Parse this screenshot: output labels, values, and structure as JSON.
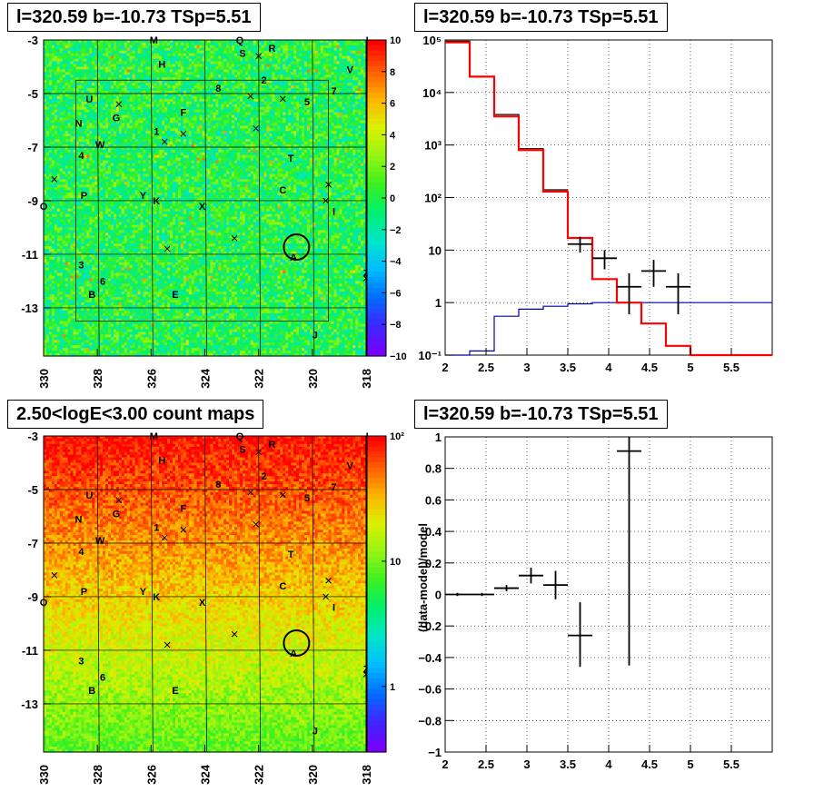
{
  "chart_data": [
    {
      "type": "heatmap",
      "title": "l=320.59 b=-10.73 TSp=5.51",
      "xlim": [
        330,
        318
      ],
      "ylim": [
        -14.8,
        -3
      ],
      "xticks": [
        "330",
        "328",
        "326",
        "324",
        "322",
        "320",
        "318"
      ],
      "yticks": [
        "-3",
        "-5",
        "-7",
        "-9",
        "-11",
        "-13"
      ],
      "colorbar": {
        "range": [
          -10,
          10
        ],
        "ticks": [
          "10",
          "8",
          "6",
          "4",
          "2",
          "0",
          "−2",
          "−4",
          "−6",
          "−8",
          "−10"
        ]
      },
      "circle": {
        "l": 320.59,
        "b": -10.73
      },
      "sources": [
        {
          "label": "M",
          "l": 325.9,
          "b": -3.0
        },
        {
          "label": "L",
          "l": 317.9,
          "b": -3.0
        },
        {
          "label": "Q",
          "l": 322.7,
          "b": -3.0
        },
        {
          "label": "S",
          "l": 322.6,
          "b": -3.5
        },
        {
          "label": "R",
          "l": 321.5,
          "b": -3.3
        },
        {
          "label": "H",
          "l": 325.6,
          "b": -3.9
        },
        {
          "label": "V",
          "l": 318.6,
          "b": -4.1
        },
        {
          "label": "2",
          "l": 321.8,
          "b": -4.5
        },
        {
          "label": "8",
          "l": 323.5,
          "b": -4.8
        },
        {
          "label": "7",
          "l": 319.2,
          "b": -4.9
        },
        {
          "label": "U",
          "l": 328.3,
          "b": -5.2
        },
        {
          "label": "5",
          "l": 320.2,
          "b": -5.3
        },
        {
          "label": "F",
          "l": 324.8,
          "b": -5.7
        },
        {
          "label": "G",
          "l": 327.3,
          "b": -5.9
        },
        {
          "label": "N",
          "l": 328.7,
          "b": -6.1
        },
        {
          "label": "1",
          "l": 325.8,
          "b": -6.4
        },
        {
          "label": "W",
          "l": 327.9,
          "b": -6.9
        },
        {
          "label": "4",
          "l": 328.6,
          "b": -7.3
        },
        {
          "label": "T",
          "l": 320.8,
          "b": -7.4
        },
        {
          "label": "C",
          "l": 321.1,
          "b": -8.6
        },
        {
          "label": "P",
          "l": 328.5,
          "b": -8.8
        },
        {
          "label": "Y",
          "l": 326.3,
          "b": -8.8
        },
        {
          "label": "K",
          "l": 325.8,
          "b": -9.0
        },
        {
          "label": "X",
          "l": 324.1,
          "b": -9.2
        },
        {
          "label": "I",
          "l": 319.2,
          "b": -9.4
        },
        {
          "label": "O",
          "l": 330.0,
          "b": -9.2
        },
        {
          "label": "A",
          "l": 320.7,
          "b": -11.1
        },
        {
          "label": "3",
          "l": 328.6,
          "b": -11.4
        },
        {
          "label": "6",
          "l": 327.8,
          "b": -12.0
        },
        {
          "label": "Z",
          "l": 318.0,
          "b": -11.7
        },
        {
          "label": "B",
          "l": 328.2,
          "b": -12.5
        },
        {
          "label": "E",
          "l": 325.1,
          "b": -12.5
        },
        {
          "label": "J",
          "l": 319.9,
          "b": -14.0
        }
      ]
    },
    {
      "type": "line",
      "title": "l=320.59 b=-10.73 TSp=5.51",
      "xlim": [
        2,
        6
      ],
      "ylim": [
        0.1,
        100000
      ],
      "log_y": true,
      "grid": true,
      "xticks": [
        "2",
        "2.5",
        "3",
        "3.5",
        "4",
        "4.5",
        "5",
        "5.5"
      ],
      "yticks": [
        "10⁵",
        "10⁴",
        "10³",
        "10²",
        "10",
        "1",
        "10⁻¹"
      ],
      "series": [
        {
          "color": "#ff0000",
          "edges": [
            2.0,
            2.3,
            2.6,
            2.9,
            3.2,
            3.5,
            3.8,
            4.1,
            4.4,
            4.7,
            5.0,
            5.3,
            5.6,
            6.0
          ],
          "values": [
            90000,
            20000,
            3500,
            800,
            130,
            17,
            2.8,
            1.0,
            0.4,
            0.15,
            0.1,
            0.1,
            0.1
          ]
        },
        {
          "color": "#0000aa",
          "edges": [
            2.0,
            2.3,
            2.6,
            2.9,
            3.2,
            3.5,
            3.8,
            4.1,
            6.0
          ],
          "values": [
            0.1,
            0.12,
            0.55,
            0.75,
            0.85,
            0.95,
            1.0,
            1.0
          ]
        },
        {
          "color": "#000000",
          "edges": [
            2.0,
            2.3,
            2.6,
            2.9,
            3.2,
            3.5
          ],
          "values": [
            95000,
            20000,
            3800,
            850,
            140
          ]
        }
      ],
      "points": [
        {
          "x": 3.65,
          "y": 13,
          "xerr": 0.15,
          "ylo": 9,
          "yhi": 18
        },
        {
          "x": 3.95,
          "y": 7,
          "xerr": 0.15,
          "ylo": 4.3,
          "yhi": 10
        },
        {
          "x": 4.25,
          "y": 2,
          "xerr": 0.15,
          "ylo": 0.6,
          "yhi": 3.6
        },
        {
          "x": 4.55,
          "y": 4,
          "xerr": 0.15,
          "ylo": 2,
          "yhi": 6.5
        },
        {
          "x": 4.85,
          "y": 2,
          "xerr": 0.15,
          "ylo": 0.6,
          "yhi": 3.6
        }
      ]
    },
    {
      "type": "heatmap",
      "title": "2.50<logE<3.00 count maps",
      "xlim": [
        330,
        318
      ],
      "ylim": [
        -14.8,
        -3
      ],
      "xticks": [
        "330",
        "328",
        "326",
        "324",
        "322",
        "320",
        "318"
      ],
      "yticks": [
        "-3",
        "-5",
        "-7",
        "-9",
        "-11",
        "-13"
      ],
      "colorbar": {
        "range": [
          0.3,
          100
        ],
        "log": true,
        "ticks": [
          "10²",
          "10",
          "1"
        ]
      }
    },
    {
      "type": "scatter",
      "title": "l=320.59 b=-10.73 TSp=5.51",
      "ylabel": "(data-model)/model",
      "xlim": [
        2,
        6
      ],
      "ylim": [
        -1,
        1
      ],
      "grid": true,
      "xticks": [
        "2",
        "2.5",
        "3",
        "3.5",
        "4",
        "4.5",
        "5",
        "5.5"
      ],
      "yticks": [
        "1",
        "0.8",
        "0.6",
        "0.4",
        "0.2",
        "0",
        "−0.2",
        "−0.4",
        "−0.6",
        "−0.8",
        "−1"
      ],
      "points": [
        {
          "x": 2.15,
          "y": 0.0,
          "xerr": 0.15,
          "ylo": -0.01,
          "yhi": 0.01
        },
        {
          "x": 2.45,
          "y": 0.0,
          "xerr": 0.15,
          "ylo": -0.01,
          "yhi": 0.01
        },
        {
          "x": 2.75,
          "y": 0.04,
          "xerr": 0.15,
          "ylo": 0.02,
          "yhi": 0.06
        },
        {
          "x": 3.05,
          "y": 0.12,
          "xerr": 0.15,
          "ylo": 0.07,
          "yhi": 0.17
        },
        {
          "x": 3.35,
          "y": 0.06,
          "xerr": 0.15,
          "ylo": -0.03,
          "yhi": 0.15
        },
        {
          "x": 3.65,
          "y": -0.26,
          "xerr": 0.15,
          "ylo": -0.46,
          "yhi": -0.05
        },
        {
          "x": 4.25,
          "y": 0.91,
          "xerr": 0.15,
          "ylo": -0.45,
          "yhi": 1.0
        }
      ]
    }
  ]
}
